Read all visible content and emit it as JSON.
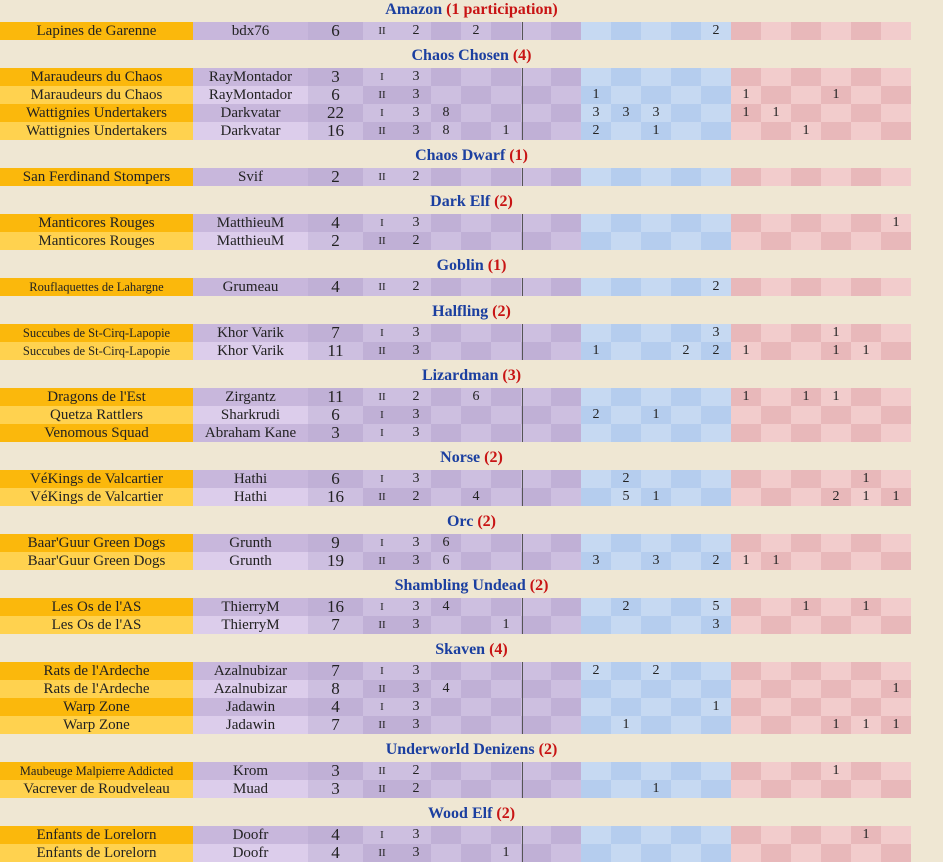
{
  "groups": [
    {
      "race": "Amazon",
      "count": "(1 participation)",
      "rows": [
        {
          "team": "Lapines de Garenne",
          "coach": "bdx76",
          "score": "6",
          "div": "II",
          "c": [
            "2",
            "",
            "2",
            "",
            "",
            "",
            "",
            "",
            "",
            "",
            "2",
            "",
            "",
            "",
            "",
            "",
            ""
          ]
        }
      ]
    },
    {
      "race": "Chaos Chosen",
      "count": "(4)",
      "rows": [
        {
          "team": "Maraudeurs du Chaos",
          "coach": "RayMontador",
          "score": "3",
          "div": "I",
          "c": [
            "3",
            "",
            "",
            "",
            "",
            "",
            "",
            "",
            "",
            "",
            "",
            "",
            "",
            "",
            "",
            "",
            ""
          ]
        },
        {
          "team": "Maraudeurs du Chaos",
          "coach": "RayMontador",
          "score": "6",
          "div": "II",
          "c": [
            "3",
            "",
            "",
            "",
            "",
            "",
            "1",
            "",
            "",
            "",
            "",
            "1",
            "",
            "",
            "1",
            "",
            ""
          ]
        },
        {
          "team": "Wattignies Undertakers",
          "coach": "Darkvatar",
          "score": "22",
          "div": "I",
          "c": [
            "3",
            "8",
            "",
            "",
            "",
            "",
            "3",
            "3",
            "3",
            "",
            "",
            "1",
            "1",
            "",
            "",
            "",
            ""
          ]
        },
        {
          "team": "Wattignies Undertakers",
          "coach": "Darkvatar",
          "score": "16",
          "div": "II",
          "c": [
            "3",
            "8",
            "",
            "1",
            "",
            "",
            "2",
            "",
            "1",
            "",
            "",
            "",
            "",
            "1",
            "",
            "",
            ""
          ]
        }
      ]
    },
    {
      "race": "Chaos Dwarf",
      "count": "(1)",
      "rows": [
        {
          "team": "San Ferdinand Stompers",
          "coach": "Svif",
          "score": "2",
          "div": "II",
          "c": [
            "2",
            "",
            "",
            "",
            "",
            "",
            "",
            "",
            "",
            "",
            "",
            "",
            "",
            "",
            "",
            "",
            ""
          ]
        }
      ]
    },
    {
      "race": "Dark Elf",
      "count": "(2)",
      "rows": [
        {
          "team": "Manticores Rouges",
          "coach": "MatthieuM",
          "score": "4",
          "div": "I",
          "c": [
            "3",
            "",
            "",
            "",
            "",
            "",
            "",
            "",
            "",
            "",
            "",
            "",
            "",
            "",
            "",
            "",
            "1"
          ]
        },
        {
          "team": "Manticores Rouges",
          "coach": "MatthieuM",
          "score": "2",
          "div": "II",
          "c": [
            "2",
            "",
            "",
            "",
            "",
            "",
            "",
            "",
            "",
            "",
            "",
            "",
            "",
            "",
            "",
            "",
            ""
          ]
        }
      ]
    },
    {
      "race": "Goblin",
      "count": "(1)",
      "rows": [
        {
          "team": "Rouflaquettes de Lahargne",
          "coach": "Grumeau",
          "score": "4",
          "div": "II",
          "c": [
            "2",
            "",
            "",
            "",
            "",
            "",
            "",
            "",
            "",
            "",
            "2",
            "",
            "",
            "",
            "",
            "",
            ""
          ]
        }
      ]
    },
    {
      "race": "Halfling",
      "count": "(2)",
      "rows": [
        {
          "team": "Succubes de St-Cirq-Lapopie",
          "coach": "Khor Varik",
          "score": "7",
          "div": "I",
          "c": [
            "3",
            "",
            "",
            "",
            "",
            "",
            "",
            "",
            "",
            "",
            "3",
            "",
            "",
            "",
            "1",
            "",
            ""
          ]
        },
        {
          "team": "Succubes de St-Cirq-Lapopie",
          "coach": "Khor Varik",
          "score": "11",
          "div": "II",
          "c": [
            "3",
            "",
            "",
            "",
            "",
            "",
            "1",
            "",
            "",
            "2",
            "2",
            "1",
            "",
            "",
            "1",
            "1",
            ""
          ]
        }
      ]
    },
    {
      "race": "Lizardman",
      "count": "(3)",
      "rows": [
        {
          "team": "Dragons de l'Est",
          "coach": "Zirgantz",
          "score": "11",
          "div": "II",
          "c": [
            "2",
            "",
            "6",
            "",
            "",
            "",
            "",
            "",
            "",
            "",
            "",
            "1",
            "",
            "1",
            "1",
            "",
            ""
          ]
        },
        {
          "team": "Quetza Rattlers",
          "coach": "Sharkrudi",
          "score": "6",
          "div": "I",
          "c": [
            "3",
            "",
            "",
            "",
            "",
            "",
            "2",
            "",
            "1",
            "",
            "",
            "",
            "",
            "",
            "",
            "",
            ""
          ]
        },
        {
          "team": "Venomous Squad",
          "coach": "Abraham Kane",
          "score": "3",
          "div": "I",
          "c": [
            "3",
            "",
            "",
            "",
            "",
            "",
            "",
            "",
            "",
            "",
            "",
            "",
            "",
            "",
            "",
            "",
            ""
          ]
        }
      ]
    },
    {
      "race": "Norse",
      "count": "(2)",
      "rows": [
        {
          "team": "VéKings de Valcartier",
          "coach": "Hathi",
          "score": "6",
          "div": "I",
          "c": [
            "3",
            "",
            "",
            "",
            "",
            "",
            "",
            "2",
            "",
            "",
            "",
            "",
            "",
            "",
            "",
            "1",
            ""
          ]
        },
        {
          "team": "VéKings de Valcartier",
          "coach": "Hathi",
          "score": "16",
          "div": "II",
          "c": [
            "2",
            "",
            "4",
            "",
            "",
            "",
            "",
            "5",
            "1",
            "",
            "",
            "",
            "",
            "",
            "2",
            "1",
            "1"
          ]
        }
      ]
    },
    {
      "race": "Orc",
      "count": "(2)",
      "rows": [
        {
          "team": "Baar'Guur Green Dogs",
          "coach": "Grunth",
          "score": "9",
          "div": "I",
          "c": [
            "3",
            "6",
            "",
            "",
            "",
            "",
            "",
            "",
            "",
            "",
            "",
            "",
            "",
            "",
            "",
            "",
            ""
          ]
        },
        {
          "team": "Baar'Guur Green Dogs",
          "coach": "Grunth",
          "score": "19",
          "div": "II",
          "c": [
            "3",
            "6",
            "",
            "",
            "",
            "",
            "3",
            "",
            "3",
            "",
            "2",
            "1",
            "1",
            "",
            "",
            "",
            ""
          ]
        }
      ]
    },
    {
      "race": "Shambling Undead",
      "count": "(2)",
      "rows": [
        {
          "team": "Les Os de l'AS",
          "coach": "ThierryM",
          "score": "16",
          "div": "I",
          "c": [
            "3",
            "4",
            "",
            "",
            "",
            "",
            "",
            "2",
            "",
            "",
            "5",
            "",
            "",
            "1",
            "",
            "1",
            ""
          ]
        },
        {
          "team": "Les Os de l'AS",
          "coach": "ThierryM",
          "score": "7",
          "div": "II",
          "c": [
            "3",
            "",
            "",
            "1",
            "",
            "",
            "",
            "",
            "",
            "",
            "3",
            "",
            "",
            "",
            "",
            "",
            ""
          ]
        }
      ]
    },
    {
      "race": "Skaven",
      "count": "(4)",
      "rows": [
        {
          "team": "Rats de l'Ardeche",
          "coach": "Azalnubizar",
          "score": "7",
          "div": "I",
          "c": [
            "3",
            "",
            "",
            "",
            "",
            "",
            "2",
            "",
            "2",
            "",
            "",
            "",
            "",
            "",
            "",
            "",
            ""
          ]
        },
        {
          "team": "Rats de l'Ardeche",
          "coach": "Azalnubizar",
          "score": "8",
          "div": "II",
          "c": [
            "3",
            "4",
            "",
            "",
            "",
            "",
            "",
            "",
            "",
            "",
            "",
            "",
            "",
            "",
            "",
            "",
            "1"
          ]
        },
        {
          "team": "Warp Zone",
          "coach": "Jadawin",
          "score": "4",
          "div": "I",
          "c": [
            "3",
            "",
            "",
            "",
            "",
            "",
            "",
            "",
            "",
            "",
            "1",
            "",
            "",
            "",
            "",
            "",
            ""
          ]
        },
        {
          "team": "Warp Zone",
          "coach": "Jadawin",
          "score": "7",
          "div": "II",
          "c": [
            "3",
            "",
            "",
            "",
            "",
            "",
            "",
            "1",
            "",
            "",
            "",
            "",
            "",
            "",
            "1",
            "1",
            "1"
          ]
        }
      ]
    },
    {
      "race": "Underworld Denizens",
      "count": "(2)",
      "rows": [
        {
          "team": "Maubeuge Malpierre Addicted",
          "coach": "Krom",
          "score": "3",
          "div": "II",
          "c": [
            "2",
            "",
            "",
            "",
            "",
            "",
            "",
            "",
            "",
            "",
            "",
            "",
            "",
            "",
            "1",
            "",
            ""
          ]
        },
        {
          "team": "Vacrever de Roudveleau",
          "coach": "Muad",
          "score": "3",
          "div": "II",
          "c": [
            "2",
            "",
            "",
            "",
            "",
            "",
            "",
            "",
            "1",
            "",
            "",
            "",
            "",
            "",
            "",
            "",
            ""
          ]
        }
      ]
    },
    {
      "race": "Wood Elf",
      "count": "(2)",
      "rows": [
        {
          "team": "Enfants de Lorelorn",
          "coach": "Doofr",
          "score": "4",
          "div": "I",
          "c": [
            "3",
            "",
            "",
            "",
            "",
            "",
            "",
            "",
            "",
            "",
            "",
            "",
            "",
            "",
            "",
            "1",
            ""
          ]
        },
        {
          "team": "Enfants de Lorelorn",
          "coach": "Doofr",
          "score": "4",
          "div": "II",
          "c": [
            "3",
            "",
            "",
            "1",
            "",
            "",
            "",
            "",
            "",
            "",
            "",
            "",
            "",
            "",
            "",
            "",
            ""
          ]
        }
      ]
    }
  ],
  "colors": {
    "header_bg": "#efe7d3",
    "race_text": "#1b3fa0",
    "count_text": "#c81414",
    "team_dark": "#fbb80c",
    "team_light": "#ffd24f",
    "coach_dark": "#c8b7dc",
    "coach_light": "#dccdeb",
    "purple_a": "#cdbfe0",
    "purple_b": "#c0b0d6",
    "blue_a": "#c6d9f2",
    "blue_b": "#b5cdee",
    "pink_a": "#f2cccc",
    "pink_b": "#e8b8ba"
  }
}
